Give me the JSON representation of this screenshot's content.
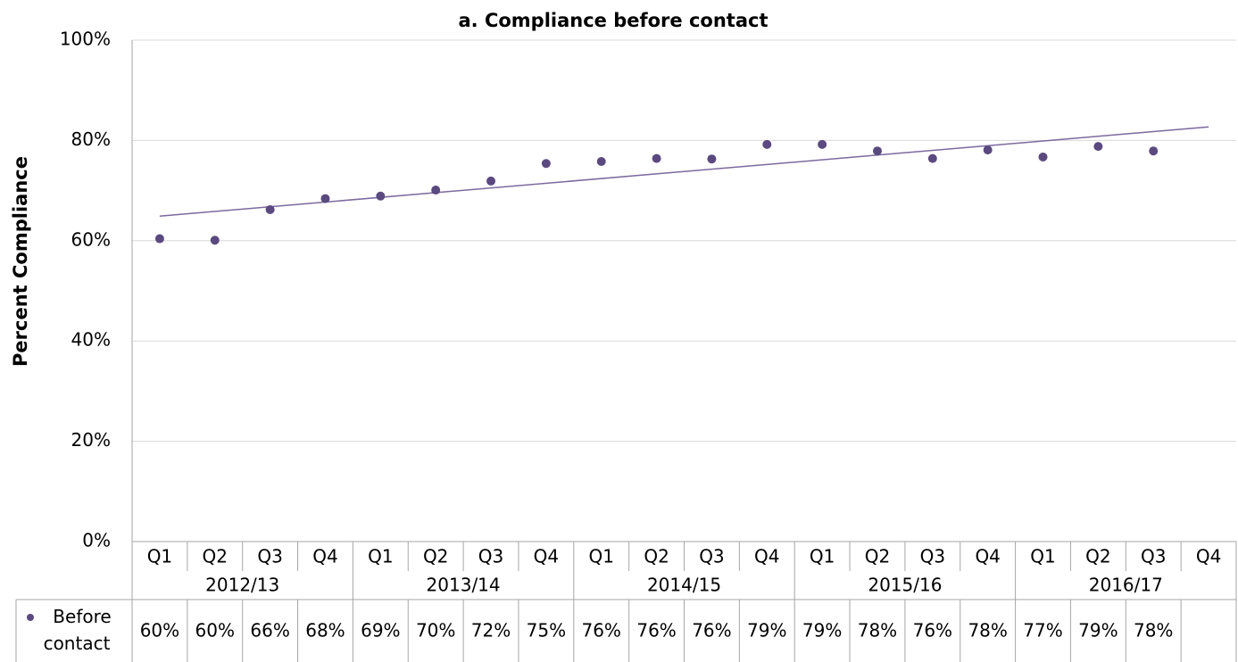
{
  "chart_data": {
    "type": "scatter",
    "title": "a. Compliance before contact",
    "y_label": "Percent Compliance",
    "categories": [
      "Q1",
      "Q2",
      "Q3",
      "Q4",
      "Q1",
      "Q2",
      "Q3",
      "Q4",
      "Q1",
      "Q2",
      "Q3",
      "Q4",
      "Q1",
      "Q2",
      "Q3",
      "Q4",
      "Q1",
      "Q2",
      "Q3",
      "Q4"
    ],
    "year_groups": [
      "2012/13",
      "2013/14",
      "2014/15",
      "2015/16",
      "2016/17"
    ],
    "series": [
      {
        "name": "Before contact",
        "color": "#5a4a7f",
        "values": [
          60.4,
          60.1,
          66.2,
          68.4,
          68.9,
          70.1,
          71.9,
          75.4,
          75.8,
          76.4,
          76.3,
          79.2,
          79.2,
          77.9,
          76.4,
          78.1,
          76.7,
          78.8,
          77.9,
          null
        ],
        "value_labels": [
          "60%",
          "60%",
          "66%",
          "68%",
          "69%",
          "70%",
          "72%",
          "75%",
          "76%",
          "76%",
          "76%",
          "79%",
          "79%",
          "78%",
          "76%",
          "78%",
          "77%",
          "79%",
          "78%",
          null
        ]
      }
    ],
    "trendline": [
      64.9,
      82.7
    ],
    "trendline_color": "#7b6a9e",
    "ylim": [
      0,
      100
    ],
    "yticks": [
      {
        "value": 0,
        "label": "0%"
      },
      {
        "value": 20,
        "label": "20%"
      },
      {
        "value": 40,
        "label": "40%"
      },
      {
        "value": 60,
        "label": "60%"
      },
      {
        "value": 80,
        "label": "80%"
      },
      {
        "value": 100,
        "label": "100%"
      }
    ],
    "grid": true
  }
}
